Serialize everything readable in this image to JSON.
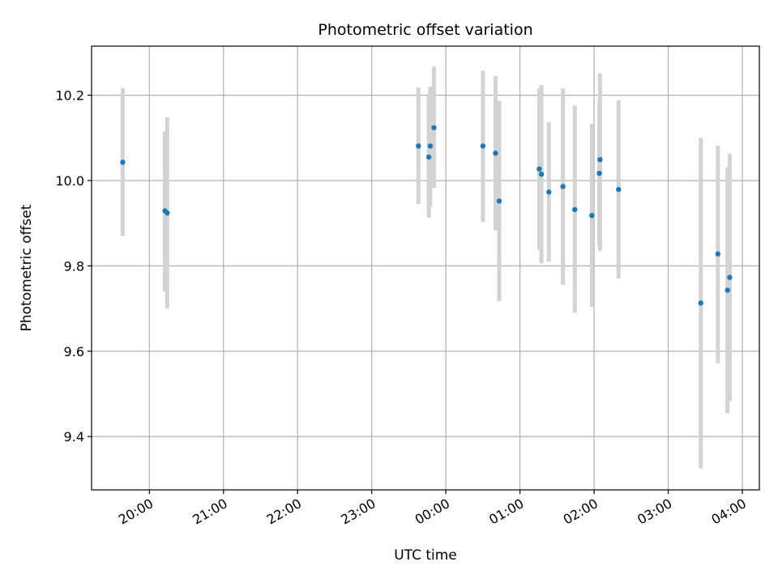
{
  "chart_data": {
    "type": "scatter",
    "title": "Photometric offset variation",
    "xlabel": "UTC time",
    "ylabel": "Photometric offset",
    "x_unit": "hours (UTC) relative to 00:00 of the second day; negative values fall on the previous evening",
    "xlim": [
      -4.78,
      4.23
    ],
    "ylim": [
      9.275,
      10.315
    ],
    "x_ticks": [
      {
        "value": -4,
        "label": "20:00"
      },
      {
        "value": -3,
        "label": "21:00"
      },
      {
        "value": -2,
        "label": "22:00"
      },
      {
        "value": -1,
        "label": "23:00"
      },
      {
        "value": 0,
        "label": "00:00"
      },
      {
        "value": 1,
        "label": "01:00"
      },
      {
        "value": 2,
        "label": "02:00"
      },
      {
        "value": 3,
        "label": "03:00"
      },
      {
        "value": 4,
        "label": "04:00"
      }
    ],
    "y_ticks": [
      {
        "value": 9.4,
        "label": "9.4"
      },
      {
        "value": 9.6,
        "label": "9.6"
      },
      {
        "value": 9.8,
        "label": "9.8"
      },
      {
        "value": 10.0,
        "label": "10.0"
      },
      {
        "value": 10.2,
        "label": "10.2"
      }
    ],
    "grid": true,
    "point_color": "#1f77b4",
    "errorbar_color": "#d3d3d3",
    "points": [
      {
        "x": -4.36,
        "y": 10.043,
        "ylo": 9.87,
        "yhi": 10.217
      },
      {
        "x": -3.79,
        "y": 9.929,
        "ylo": 9.74,
        "yhi": 10.115
      },
      {
        "x": -3.76,
        "y": 9.924,
        "ylo": 9.7,
        "yhi": 10.148
      },
      {
        "x": -0.37,
        "y": 10.081,
        "ylo": 9.945,
        "yhi": 10.218
      },
      {
        "x": -0.23,
        "y": 10.055,
        "ylo": 9.913,
        "yhi": 10.197
      },
      {
        "x": -0.21,
        "y": 10.081,
        "ylo": 9.94,
        "yhi": 10.22
      },
      {
        "x": -0.16,
        "y": 10.124,
        "ylo": 9.983,
        "yhi": 10.267
      },
      {
        "x": 0.5,
        "y": 10.081,
        "ylo": 9.903,
        "yhi": 10.257
      },
      {
        "x": 0.67,
        "y": 10.064,
        "ylo": 9.883,
        "yhi": 10.245
      },
      {
        "x": 0.72,
        "y": 9.952,
        "ylo": 9.717,
        "yhi": 10.187
      },
      {
        "x": 1.26,
        "y": 10.027,
        "ylo": 9.838,
        "yhi": 10.216
      },
      {
        "x": 1.29,
        "y": 10.015,
        "ylo": 9.806,
        "yhi": 10.224
      },
      {
        "x": 1.39,
        "y": 9.973,
        "ylo": 9.81,
        "yhi": 10.137
      },
      {
        "x": 1.58,
        "y": 9.986,
        "ylo": 9.756,
        "yhi": 10.216
      },
      {
        "x": 1.74,
        "y": 9.932,
        "ylo": 9.69,
        "yhi": 10.176
      },
      {
        "x": 1.97,
        "y": 9.918,
        "ylo": 9.704,
        "yhi": 10.133
      },
      {
        "x": 2.07,
        "y": 10.017,
        "ylo": 9.847,
        "yhi": 10.186
      },
      {
        "x": 2.08,
        "y": 10.049,
        "ylo": 9.835,
        "yhi": 10.251
      },
      {
        "x": 2.33,
        "y": 9.979,
        "ylo": 9.77,
        "yhi": 10.188
      },
      {
        "x": 3.44,
        "y": 9.713,
        "ylo": 9.325,
        "yhi": 10.1
      },
      {
        "x": 3.67,
        "y": 9.828,
        "ylo": 9.572,
        "yhi": 10.082
      },
      {
        "x": 3.8,
        "y": 9.743,
        "ylo": 9.455,
        "yhi": 10.031
      },
      {
        "x": 3.83,
        "y": 9.773,
        "ylo": 9.483,
        "yhi": 10.063
      }
    ]
  }
}
